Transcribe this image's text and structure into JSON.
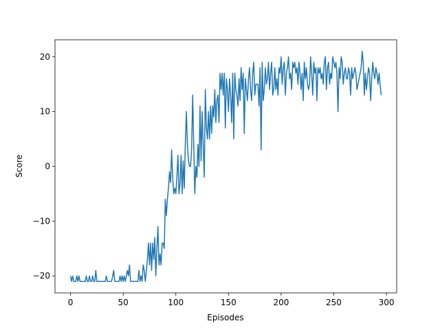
{
  "chart_data": {
    "type": "line",
    "xlabel": "Episodes",
    "ylabel": "Score",
    "color": "#1f77b4",
    "x": [
      0,
      1,
      2,
      3,
      4,
      5,
      6,
      7,
      8,
      9,
      10,
      11,
      12,
      13,
      14,
      15,
      16,
      17,
      18,
      19,
      20,
      21,
      22,
      23,
      24,
      25,
      26,
      27,
      28,
      29,
      30,
      31,
      32,
      33,
      34,
      35,
      36,
      37,
      38,
      39,
      40,
      41,
      42,
      43,
      44,
      45,
      46,
      47,
      48,
      49,
      50,
      51,
      52,
      53,
      54,
      55,
      56,
      57,
      58,
      59,
      60,
      61,
      62,
      63,
      64,
      65,
      66,
      67,
      68,
      69,
      70,
      71,
      72,
      73,
      74,
      75,
      76,
      77,
      78,
      79,
      80,
      81,
      82,
      83,
      84,
      85,
      86,
      87,
      88,
      89,
      90,
      91,
      92,
      93,
      94,
      95,
      96,
      97,
      98,
      99,
      100,
      101,
      102,
      103,
      104,
      105,
      106,
      107,
      108,
      109,
      110,
      111,
      112,
      113,
      114,
      115,
      116,
      117,
      118,
      119,
      120,
      121,
      122,
      123,
      124,
      125,
      126,
      127,
      128,
      129,
      130,
      131,
      132,
      133,
      134,
      135,
      136,
      137,
      138,
      139,
      140,
      141,
      142,
      143,
      144,
      145,
      146,
      147,
      148,
      149,
      150,
      151,
      152,
      153,
      154,
      155,
      156,
      157,
      158,
      159,
      160,
      161,
      162,
      163,
      164,
      165,
      166,
      167,
      168,
      169,
      170,
      171,
      172,
      173,
      174,
      175,
      176,
      177,
      178,
      179,
      180,
      181,
      182,
      183,
      184,
      185,
      186,
      187,
      188,
      189,
      190,
      191,
      192,
      193,
      194,
      195,
      196,
      197,
      198,
      199,
      200,
      201,
      202,
      203,
      204,
      205,
      206,
      207,
      208,
      209,
      210,
      211,
      212,
      213,
      214,
      215,
      216,
      217,
      218,
      219,
      220,
      221,
      222,
      223,
      224,
      225,
      226,
      227,
      228,
      229,
      230,
      231,
      232,
      233,
      234,
      235,
      236,
      237,
      238,
      239,
      240,
      241,
      242,
      243,
      244,
      245,
      246,
      247,
      248,
      249,
      250,
      251,
      252,
      253,
      254,
      255,
      256,
      257,
      258,
      259,
      260,
      261,
      262,
      263,
      264,
      265,
      266,
      267,
      268,
      269,
      270,
      271,
      272,
      273,
      274,
      275,
      276,
      277,
      278,
      279,
      280,
      281,
      282,
      283,
      284,
      285,
      286,
      287,
      288,
      289,
      290,
      291,
      292,
      293,
      294,
      295
    ],
    "values": [
      -20,
      -21,
      -20,
      -21,
      -21,
      -21,
      -20,
      -21,
      -20,
      -21,
      -21,
      -21,
      -21,
      -21,
      -21,
      -20,
      -21,
      -21,
      -20,
      -21,
      -21,
      -20,
      -21,
      -21,
      -19,
      -21,
      -21,
      -21,
      -21,
      -21,
      -21,
      -21,
      -21,
      -21,
      -20,
      -21,
      -21,
      -21,
      -21,
      -21,
      -20,
      -19,
      -21,
      -21,
      -21,
      -21,
      -21,
      -20,
      -21,
      -20,
      -21,
      -20,
      -21,
      -20,
      -19,
      -20,
      -18,
      -21,
      -21,
      -21,
      -21,
      -21,
      -21,
      -21,
      -21,
      -19,
      -21,
      -20,
      -21,
      -18,
      -19,
      -21,
      -19,
      -17,
      -14,
      -18,
      -14,
      -19,
      -14,
      -17,
      -13,
      -20,
      -15,
      -11,
      -18,
      -16,
      -18,
      -14,
      -14,
      -15,
      -6,
      -9,
      -6,
      -4,
      -1,
      -3,
      3,
      -2,
      -5,
      -4,
      -5,
      -2,
      2,
      -5,
      -3,
      2,
      -5,
      1,
      -4,
      4,
      10,
      4,
      1,
      0,
      0,
      3,
      13,
      4,
      -5,
      0,
      -2,
      4,
      0,
      11,
      1,
      10,
      4,
      -2,
      14,
      7,
      5,
      10,
      5,
      11,
      6,
      11,
      9,
      14,
      8,
      12,
      13,
      8,
      17,
      14,
      17,
      13,
      17,
      7,
      16,
      14,
      10,
      16,
      13,
      8,
      17,
      5,
      17,
      14,
      13,
      11,
      16,
      12,
      18,
      14,
      17,
      6,
      16,
      14,
      12,
      16,
      18,
      14,
      12,
      17,
      19,
      13,
      15,
      15,
      15,
      11,
      18,
      3,
      19,
      12,
      14,
      18,
      15,
      16,
      19,
      14,
      17,
      19,
      13,
      14,
      18,
      14,
      16,
      13,
      18,
      17,
      20,
      15,
      18,
      19,
      13,
      17,
      18,
      20,
      16,
      17,
      14,
      19,
      18,
      19,
      17,
      18,
      15,
      19,
      17,
      14,
      17,
      12,
      19,
      16,
      18,
      15,
      14,
      15,
      20,
      17,
      13,
      19,
      17,
      18,
      12,
      18,
      17,
      18,
      16,
      17,
      15,
      19,
      20,
      14,
      18,
      19,
      15,
      17,
      16,
      20,
      19,
      18,
      19,
      17,
      10,
      18,
      16,
      20,
      19,
      15,
      17,
      18,
      16,
      16,
      18,
      17,
      13,
      18,
      16,
      17,
      18,
      17,
      14,
      15,
      16,
      17,
      18,
      21,
      19,
      13,
      17,
      14,
      16,
      18,
      17,
      12,
      16,
      19,
      17,
      16,
      18,
      17,
      15,
      17,
      15,
      13
    ],
    "xlim": [
      -14.75,
      309.75
    ],
    "ylim": [
      -23.1,
      23.1
    ],
    "xticks": [
      0,
      50,
      100,
      150,
      200,
      250,
      300
    ],
    "yticks": [
      {
        "value": -20,
        "label": "−20"
      },
      {
        "value": -10,
        "label": "−10"
      },
      0,
      10,
      20
    ]
  }
}
